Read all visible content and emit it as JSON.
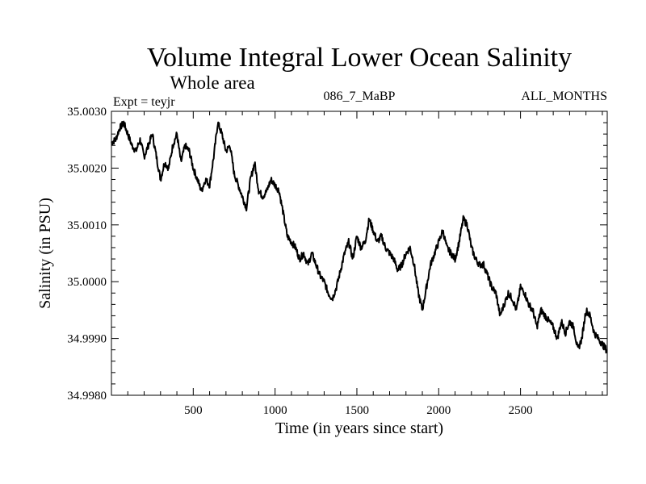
{
  "chart_data": {
    "type": "line",
    "title": "Volume Integral Lower Ocean Salinity",
    "subtitle": "Whole area",
    "annotations": {
      "left": "Expt = teyjr",
      "center": "086_7_MaBP",
      "right": "ALL_MONTHS"
    },
    "xlabel": "Time (in years since start)",
    "ylabel": "Salinity (in PSU)",
    "xlim": [
      0,
      3030
    ],
    "ylim": [
      34.998,
      35.003
    ],
    "xticks": [
      500,
      1000,
      1500,
      2000,
      2500
    ],
    "xtick_labels": [
      "500",
      "1000",
      "1500",
      "2000",
      "2500"
    ],
    "xminor_step": 100,
    "yticks": [
      34.998,
      34.999,
      35.0,
      35.001,
      35.002,
      35.003
    ],
    "ytick_labels": [
      "34.9980",
      "34.9990",
      "35.0000",
      "35.0010",
      "35.0020",
      "35.0030"
    ],
    "yminor_step": 0.0002,
    "grid": false,
    "legend": "none",
    "series": [
      {
        "name": "Salinity",
        "color": "#000000",
        "x": [
          0,
          25,
          50,
          75,
          100,
          125,
          150,
          175,
          200,
          225,
          250,
          275,
          300,
          325,
          350,
          375,
          400,
          425,
          450,
          475,
          500,
          525,
          550,
          575,
          600,
          625,
          650,
          675,
          700,
          725,
          750,
          775,
          800,
          825,
          850,
          875,
          900,
          925,
          950,
          975,
          1000,
          1025,
          1050,
          1075,
          1100,
          1125,
          1150,
          1175,
          1200,
          1225,
          1250,
          1275,
          1300,
          1325,
          1350,
          1375,
          1400,
          1425,
          1450,
          1475,
          1500,
          1525,
          1550,
          1575,
          1600,
          1625,
          1650,
          1675,
          1700,
          1725,
          1750,
          1775,
          1800,
          1825,
          1850,
          1875,
          1900,
          1925,
          1950,
          1975,
          2000,
          2025,
          2050,
          2075,
          2100,
          2125,
          2150,
          2175,
          2200,
          2225,
          2250,
          2275,
          2300,
          2325,
          2350,
          2375,
          2400,
          2425,
          2450,
          2475,
          2500,
          2525,
          2550,
          2575,
          2600,
          2625,
          2650,
          2675,
          2700,
          2725,
          2750,
          2775,
          2800,
          2825,
          2850,
          2875,
          2900,
          2925,
          2950,
          2975,
          3000,
          3025
        ],
        "y": [
          35.00245,
          35.0025,
          35.0027,
          35.0028,
          35.0026,
          35.0024,
          35.0023,
          35.0025,
          35.0022,
          35.0024,
          35.0026,
          35.0022,
          35.0018,
          35.0021,
          35.002,
          35.0024,
          35.0026,
          35.0021,
          35.0024,
          35.0023,
          35.002,
          35.0018,
          35.0016,
          35.0018,
          35.0017,
          35.0022,
          35.0028,
          35.0026,
          35.0023,
          35.0024,
          35.0019,
          35.0017,
          35.0015,
          35.0013,
          35.0018,
          35.0021,
          35.0016,
          35.0015,
          35.0016,
          35.0018,
          35.0017,
          35.0016,
          35.0012,
          35.0008,
          35.0007,
          35.0006,
          35.0004,
          35.0005,
          35.0003,
          35.0005,
          35.0003,
          35.0001,
          35.0,
          34.9998,
          34.9997,
          34.9999,
          35.0002,
          35.0005,
          35.0007,
          35.0004,
          35.0008,
          35.0006,
          35.0007,
          35.0011,
          35.0009,
          35.0007,
          35.0008,
          35.0006,
          35.0005,
          35.0004,
          35.0002,
          35.0003,
          35.0005,
          35.0006,
          35.0003,
          34.9998,
          34.9995,
          34.9999,
          35.0003,
          35.0005,
          35.0007,
          35.0009,
          35.0006,
          35.0005,
          35.0004,
          35.0007,
          35.0011,
          35.001,
          35.0006,
          35.0004,
          35.0003,
          35.0003,
          35.0001,
          34.9999,
          34.9998,
          34.9994,
          34.9996,
          34.9998,
          34.9997,
          34.9995,
          34.9999,
          34.9998,
          34.9996,
          34.9995,
          34.9992,
          34.9995,
          34.9994,
          34.9993,
          34.9992,
          34.999,
          34.9993,
          34.9991,
          34.9993,
          34.9992,
          34.9988,
          34.999,
          34.9995,
          34.9994,
          34.9991,
          34.999,
          34.9989,
          34.9988
        ]
      }
    ]
  }
}
